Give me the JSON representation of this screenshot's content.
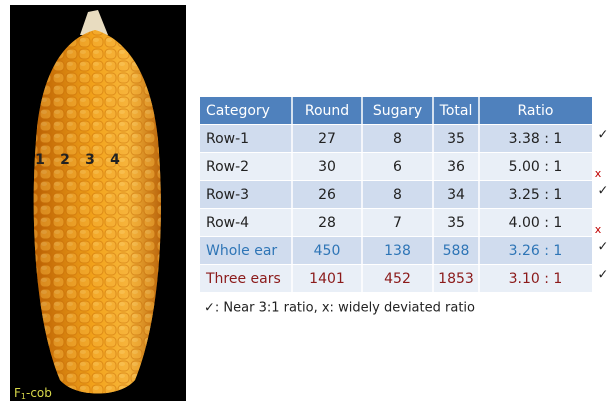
{
  "image": {
    "labels": [
      "1",
      "2",
      "3",
      "4"
    ],
    "caption": {
      "main": "F",
      "sub": "1",
      "rest": "-cob"
    }
  },
  "table": {
    "headers": [
      "Category",
      "Round",
      "Sugary",
      "Total",
      "Ratio"
    ],
    "rows": [
      {
        "cells": [
          "Row-1",
          27,
          8,
          35,
          "3.38 : 1"
        ],
        "mark": "✓"
      },
      {
        "cells": [
          "Row-2",
          30,
          6,
          36,
          "5.00 : 1"
        ],
        "mark": "x"
      },
      {
        "cells": [
          "Row-3",
          26,
          8,
          34,
          "3.25 : 1"
        ],
        "mark": "✓"
      },
      {
        "cells": [
          "Row-4",
          28,
          7,
          35,
          "4.00 : 1"
        ],
        "mark": "x"
      },
      {
        "cells": [
          "Whole ear",
          450,
          138,
          588,
          "3.26 : 1"
        ],
        "mark": "✓"
      },
      {
        "cells": [
          "Three ears",
          1401,
          452,
          1853,
          "3.10 : 1"
        ],
        "mark": "✓"
      }
    ]
  },
  "footnote": "✓: Near 3:1 ratio, x: widely deviated ratio"
}
